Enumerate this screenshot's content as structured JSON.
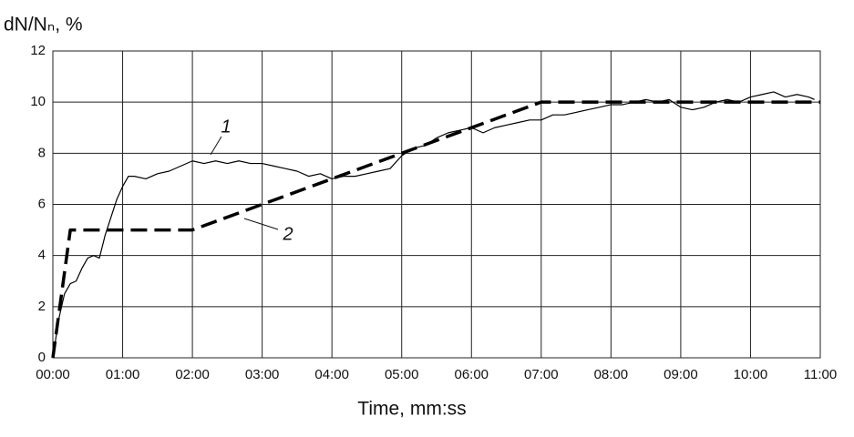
{
  "chart_data": {
    "type": "line",
    "y_label": "dN/Nₙ, %",
    "x_label": "Time, mm:ss",
    "xlim": [
      0,
      660
    ],
    "xticks": [
      {
        "value": 0,
        "label": "00:00"
      },
      {
        "value": 60,
        "label": "01:00"
      },
      {
        "value": 120,
        "label": "02:00"
      },
      {
        "value": 180,
        "label": "03:00"
      },
      {
        "value": 240,
        "label": "04:00"
      },
      {
        "value": 300,
        "label": "05:00"
      },
      {
        "value": 360,
        "label": "06:00"
      },
      {
        "value": 420,
        "label": "07:00"
      },
      {
        "value": 480,
        "label": "08:00"
      },
      {
        "value": 540,
        "label": "09:00"
      },
      {
        "value": 600,
        "label": "10:00"
      },
      {
        "value": 660,
        "label": "11:00"
      }
    ],
    "ylim": [
      0,
      12
    ],
    "yticks": [
      0,
      2,
      4,
      6,
      8,
      10,
      12
    ],
    "grid": true,
    "series": [
      {
        "name": "1",
        "color": "#000000",
        "style": "solid",
        "x": [
          0,
          5,
          10,
          15,
          20,
          25,
          30,
          35,
          40,
          45,
          50,
          55,
          60,
          65,
          70,
          80,
          90,
          100,
          110,
          120,
          130,
          140,
          150,
          160,
          170,
          180,
          190,
          200,
          210,
          220,
          230,
          240,
          250,
          260,
          270,
          280,
          290,
          300,
          310,
          320,
          330,
          340,
          350,
          360,
          370,
          380,
          390,
          400,
          410,
          420,
          430,
          440,
          450,
          460,
          470,
          480,
          490,
          500,
          510,
          520,
          530,
          540,
          550,
          560,
          570,
          580,
          590,
          600,
          610,
          620,
          630,
          640,
          650,
          655
        ],
        "values": [
          0,
          1.5,
          2.5,
          2.9,
          3.0,
          3.5,
          3.9,
          4.0,
          3.9,
          4.8,
          5.5,
          6.2,
          6.7,
          7.1,
          7.1,
          7.0,
          7.2,
          7.3,
          7.5,
          7.7,
          7.6,
          7.7,
          7.6,
          7.7,
          7.6,
          7.6,
          7.5,
          7.4,
          7.3,
          7.1,
          7.2,
          7.0,
          7.1,
          7.1,
          7.2,
          7.3,
          7.4,
          7.9,
          8.2,
          8.3,
          8.6,
          8.8,
          8.9,
          9.0,
          8.8,
          9.0,
          9.1,
          9.2,
          9.3,
          9.3,
          9.5,
          9.5,
          9.6,
          9.7,
          9.8,
          9.9,
          9.9,
          10.0,
          10.1,
          10.0,
          10.1,
          9.8,
          9.7,
          9.8,
          10.0,
          10.1,
          10.0,
          10.2,
          10.3,
          10.4,
          10.2,
          10.3,
          10.2,
          10.1
        ]
      },
      {
        "name": "2",
        "color": "#000000",
        "style": "dashed",
        "x": [
          0,
          15,
          120,
          420,
          660
        ],
        "values": [
          0,
          5,
          5,
          10,
          10
        ]
      }
    ]
  }
}
